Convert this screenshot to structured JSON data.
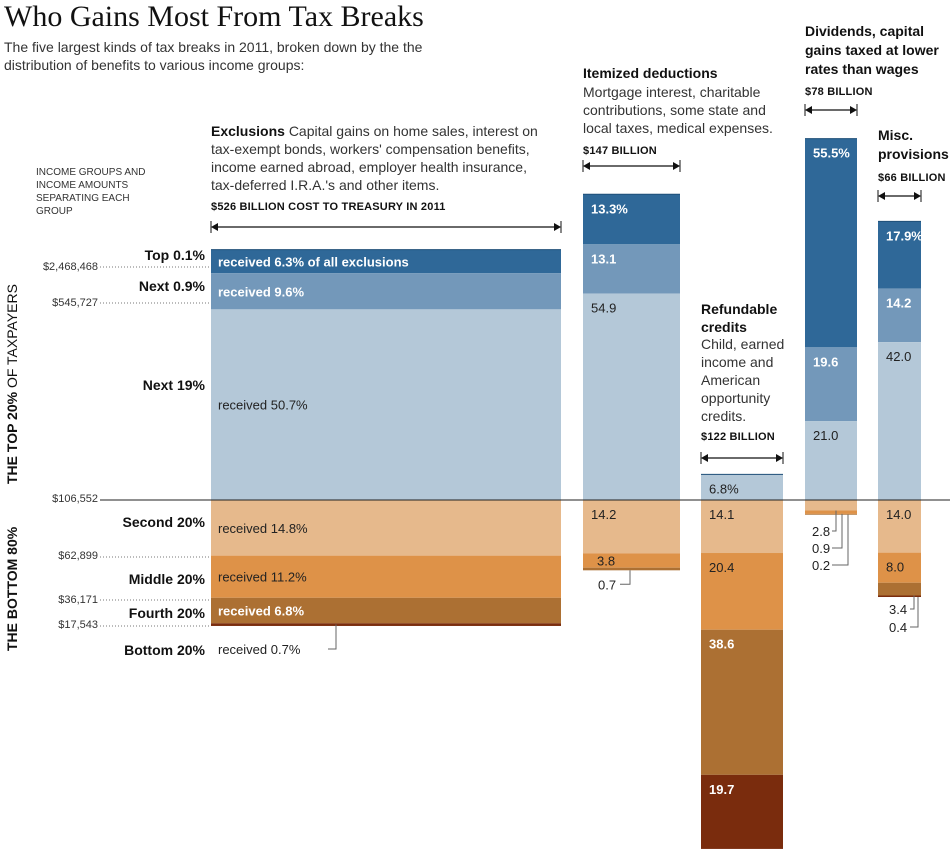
{
  "title": "Who Gains Most From Tax Breaks",
  "subtitle": "The five largest kinds of tax breaks in 2011, broken down by the the distribution of benefits to various income groups:",
  "legend_heading": "INCOME GROUPS AND INCOME AMOUNTS SEPARATING EACH GROUP",
  "side_labels": {
    "top": "THE TOP 20%",
    "top_suffix": "OF TAXPAYERS",
    "bottom": "THE BOTTOM 80%"
  },
  "colors": {
    "top01": "#2f6898",
    "next09": "#7398ba",
    "next19": "#b4c8d8",
    "second20": "#e6b98c",
    "middle20": "#de9248",
    "fourth20": "#ac7033",
    "bottom20": "#7a2c0d"
  },
  "groups": [
    {
      "id": "top01",
      "label": "Top 0.1%"
    },
    {
      "id": "next09",
      "label": "Next 0.9%"
    },
    {
      "id": "next19",
      "label": "Next 19%"
    },
    {
      "id": "second20",
      "label": "Second 20%"
    },
    {
      "id": "middle20",
      "label": "Middle 20%"
    },
    {
      "id": "fourth20",
      "label": "Fourth 20%"
    },
    {
      "id": "bottom20",
      "label": "Bottom 20%"
    }
  ],
  "thresholds": [
    "$2,468,468",
    "$545,727",
    "$106,552",
    "$62,899",
    "$36,171",
    "$17,543"
  ],
  "chart_data": {
    "type": "bar",
    "title": "Who Gains Most From Tax Breaks",
    "categories": [
      "Top 0.1%",
      "Next 0.9%",
      "Next 19%",
      "Second 20%",
      "Middle 20%",
      "Fourth 20%",
      "Bottom 20%"
    ],
    "series": [
      {
        "name": "Exclusions",
        "header": "Exclusions",
        "description": "Capital gains on home sales, interest on tax-exempt bonds, workers' compensation benefits, income earned abroad, employer health insurance, tax-deferred I.R.A.'s and other items.",
        "amount_label": "$526 BILLION COST TO TREASURY IN 2011",
        "values": [
          6.3,
          9.6,
          50.7,
          14.8,
          11.2,
          6.8,
          0.7
        ],
        "labels": [
          "received 6.3% of all exclusions",
          "received 9.6%",
          "received 50.7%",
          "received 14.8%",
          "received 11.2%",
          "received 6.8%",
          "received 0.7%"
        ]
      },
      {
        "name": "Itemized deductions",
        "header": "Itemized deductions",
        "description": "Mortgage interest, charitable contributions, some state and local taxes, medical expenses.",
        "amount_label": "$147 BILLION",
        "values": [
          13.3,
          13.1,
          54.9,
          14.2,
          3.8,
          0.7,
          0
        ],
        "labels": [
          "13.3%",
          "13.1",
          "54.9",
          "14.2",
          "3.8",
          "0.7",
          ""
        ]
      },
      {
        "name": "Refundable credits",
        "header": "Refundable credits",
        "description": "Child, earned income and American opportunity credits.",
        "amount_label": "$122 BILLION",
        "values": [
          0,
          0,
          6.8,
          14.1,
          20.4,
          38.6,
          19.7
        ],
        "labels": [
          "",
          "",
          "6.8%",
          "14.1",
          "20.4",
          "38.6",
          "19.7"
        ]
      },
      {
        "name": "Dividends, capital gains taxed at lower rates than wages",
        "header": "Dividends, capital gains taxed at lower rates than wages",
        "description": "",
        "amount_label": "$78 BILLION",
        "values": [
          55.5,
          19.6,
          21.0,
          2.8,
          0.9,
          0.2,
          0
        ],
        "labels": [
          "55.5%",
          "19.6",
          "21.0",
          "2.8",
          "0.9",
          "0.2",
          ""
        ]
      },
      {
        "name": "Misc. provisions",
        "header": "Misc. provisions",
        "description": "",
        "amount_label": "$66 BILLION",
        "values": [
          17.9,
          14.2,
          42.0,
          14.0,
          8.0,
          3.4,
          0.4
        ],
        "labels": [
          "17.9%",
          "14.2",
          "42.0",
          "14.0",
          "8.0",
          "3.4",
          "0.4"
        ]
      }
    ],
    "unit": "percent of benefits",
    "legend": "left"
  }
}
